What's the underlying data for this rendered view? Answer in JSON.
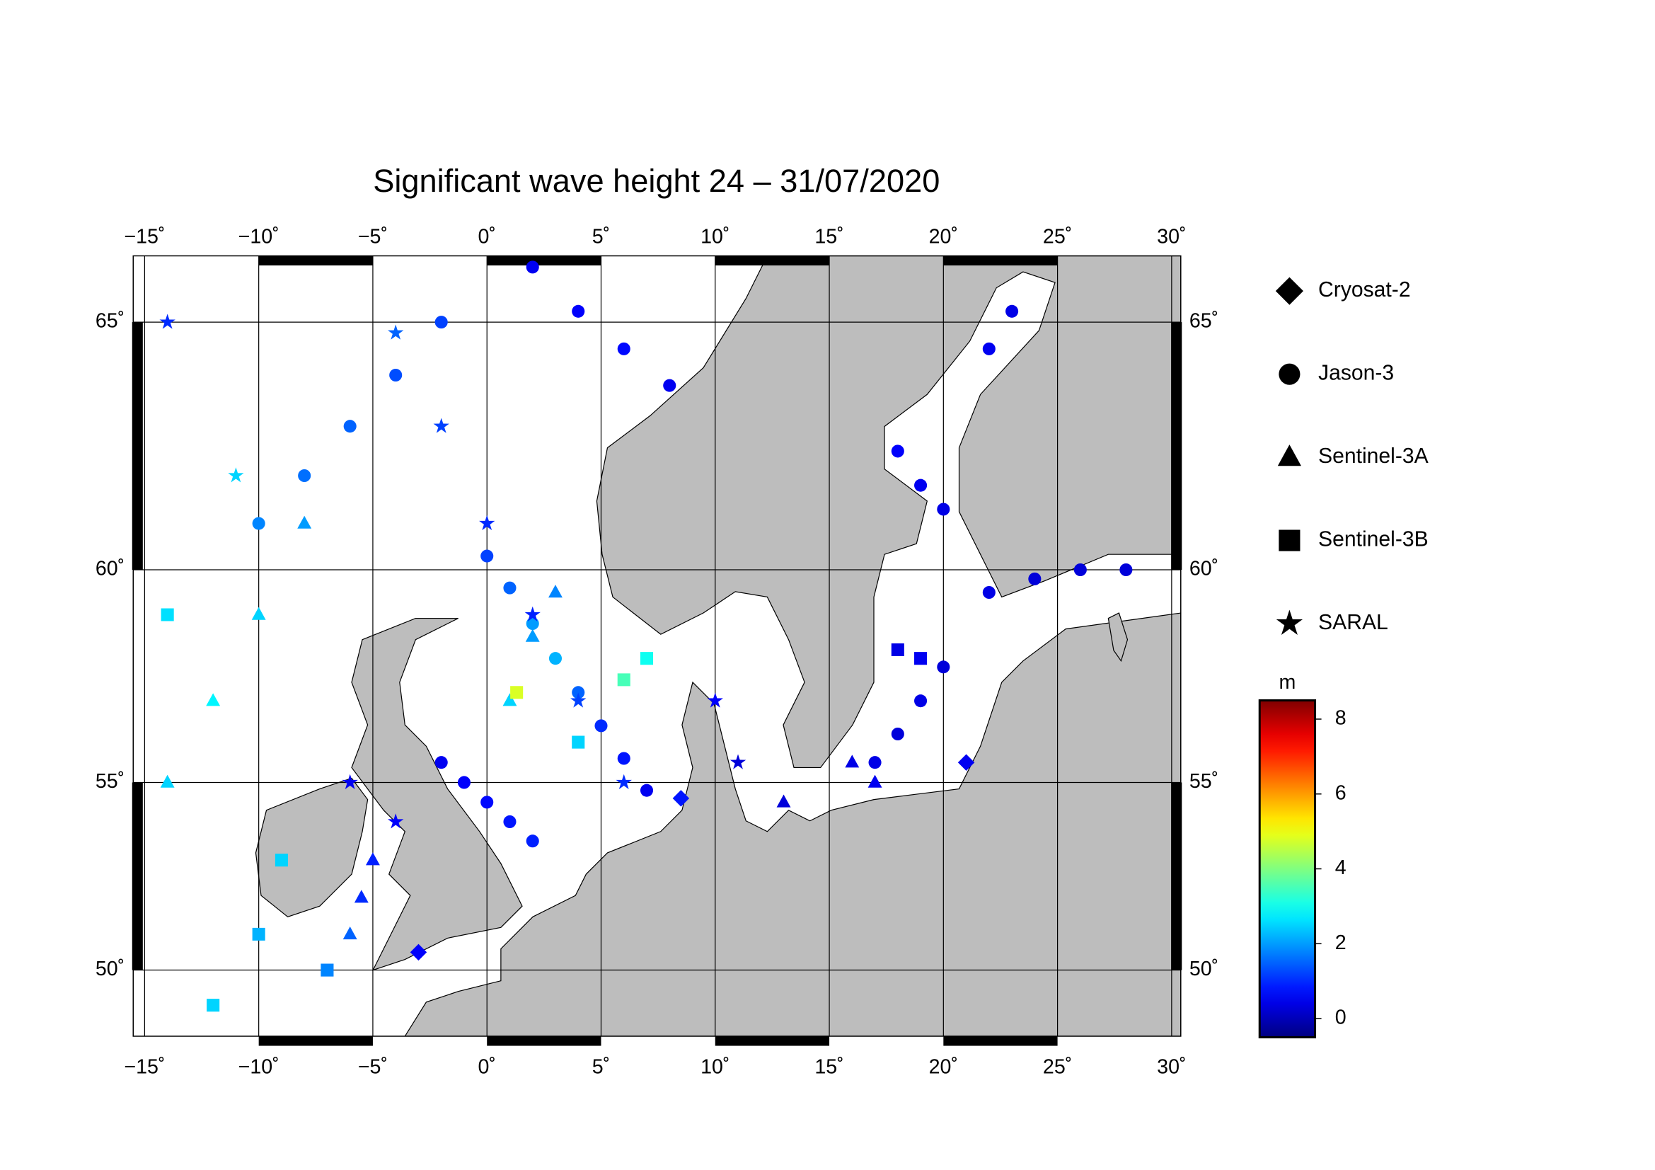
{
  "chart_data": {
    "type": "scatter",
    "title": "Significant wave height 24 – 31/07/2020",
    "xlim": [
      -15.5,
      30.4
    ],
    "ylim": [
      48.1,
      66.2
    ],
    "xticks": [
      {
        "value": -15,
        "label": "−15˚"
      },
      {
        "value": -10,
        "label": "−10˚"
      },
      {
        "value": -5,
        "label": "−5˚"
      },
      {
        "value": 0,
        "label": "0˚"
      },
      {
        "value": 5,
        "label": "5˚"
      },
      {
        "value": 10,
        "label": "10˚"
      },
      {
        "value": 15,
        "label": "15˚"
      },
      {
        "value": 20,
        "label": "20˚"
      },
      {
        "value": 25,
        "label": "25˚"
      },
      {
        "value": 30,
        "label": "30˚"
      }
    ],
    "yticks": [
      {
        "value": 50,
        "label": "50˚"
      },
      {
        "value": 55,
        "label": "55˚"
      },
      {
        "value": 60,
        "label": "60˚"
      },
      {
        "value": 65,
        "label": "65˚"
      }
    ],
    "grid": true,
    "colorbar": {
      "label": "m",
      "lim": [
        -0.5,
        8.5
      ],
      "ticks": [
        0,
        2,
        4,
        6,
        8
      ],
      "colormap": "jet"
    },
    "series": [
      {
        "name": "Cryosat-2",
        "marker": "diamond",
        "lon": [
          21,
          8.5,
          -3
        ],
        "lat": [
          55.5,
          54.6,
          50.5
        ],
        "values": [
          0.5,
          0.8,
          0.6
        ]
      },
      {
        "name": "Jason-3",
        "marker": "circle",
        "lon": [
          0,
          1,
          2,
          3,
          4,
          5,
          6,
          7,
          -2,
          -1,
          0,
          1,
          2,
          -10,
          -8,
          -6,
          -4,
          -2,
          2,
          4,
          6,
          8,
          17,
          18,
          19,
          20,
          22,
          24,
          26,
          28,
          18,
          19,
          20,
          22,
          23
        ],
        "lat": [
          60.3,
          59.6,
          58.8,
          58.0,
          57.2,
          56.4,
          55.6,
          54.8,
          55.5,
          55.0,
          54.5,
          54.0,
          53.5,
          61,
          62,
          63,
          64,
          65,
          66,
          65.2,
          64.5,
          63.8,
          55.5,
          56.2,
          57,
          57.8,
          59.5,
          59.8,
          60,
          60,
          62.5,
          61.8,
          61.3,
          64.5,
          65.2
        ],
        "values": [
          1.2,
          1.5,
          2.0,
          2.2,
          1.5,
          1.0,
          0.8,
          0.5,
          0.5,
          0.6,
          0.7,
          0.8,
          0.9,
          1.8,
          1.6,
          1.5,
          1.3,
          1.2,
          0.5,
          0.6,
          0.7,
          0.5,
          0.4,
          0.3,
          0.4,
          0.3,
          0.4,
          0.3,
          0.3,
          0.3,
          0.6,
          0.5,
          0.4,
          0.5,
          0.4
        ]
      },
      {
        "name": "Sentinel-3A",
        "marker": "triangle",
        "lon": [
          -14,
          -12,
          -10,
          -8,
          1,
          2,
          3,
          -6,
          -5.5,
          -5,
          17,
          16,
          13
        ],
        "lat": [
          55,
          57,
          59,
          61,
          57,
          58.5,
          59.5,
          51,
          52,
          53,
          55,
          55.5,
          54.5
        ],
        "values": [
          2.5,
          2.8,
          2.5,
          2.0,
          2.5,
          2.0,
          1.8,
          1.5,
          1.0,
          0.9,
          0.5,
          0.4,
          0.3
        ]
      },
      {
        "name": "Sentinel-3B",
        "marker": "square",
        "lon": [
          -12,
          -10,
          -9,
          -7,
          6,
          7,
          4,
          1.3,
          18,
          19,
          -14
        ],
        "lat": [
          49,
          51,
          53,
          50,
          57.5,
          58,
          56,
          57.2,
          58.2,
          58,
          59
        ],
        "values": [
          2.5,
          2.2,
          2.5,
          1.8,
          3.5,
          3.0,
          2.5,
          4.8,
          0.4,
          0.5,
          2.6
        ]
      },
      {
        "name": "SARAL",
        "marker": "star",
        "lon": [
          -4,
          -2,
          0,
          2,
          4,
          6,
          10,
          11,
          -6,
          -4,
          -14,
          -11
        ],
        "lat": [
          64.8,
          63,
          61,
          59,
          57,
          55,
          57,
          55.5,
          55,
          54,
          65,
          62
        ],
        "values": [
          1.5,
          1.2,
          1.0,
          0.9,
          1.2,
          1.0,
          0.6,
          0.3,
          0.5,
          0.6,
          1.0,
          2.5
        ]
      }
    ]
  }
}
